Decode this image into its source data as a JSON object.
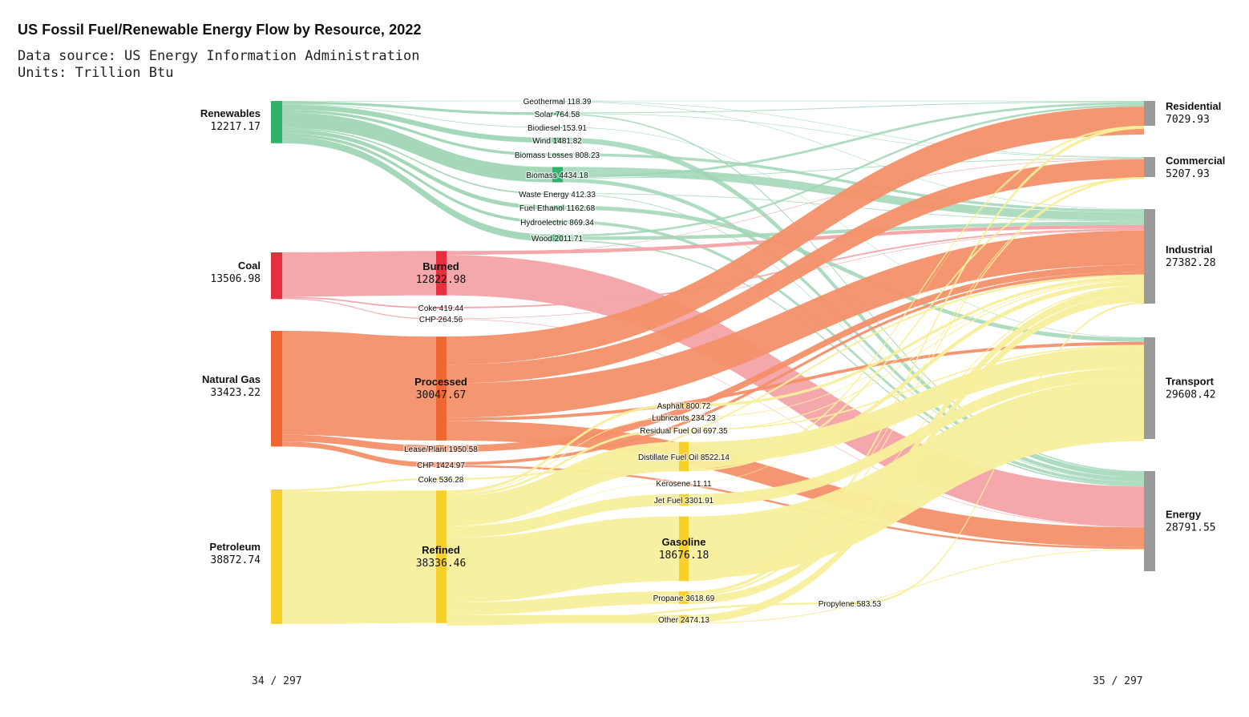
{
  "title": "US Fossil Fuel/Renewable Energy Flow by Resource, 2022",
  "subtitle_source": "Data source: US Energy Information Administration",
  "subtitle_units": "Units: Trillion Btu",
  "page_left": "34 / 297",
  "page_right": "35 / 297",
  "colors": {
    "renewables": "#2fb36a",
    "renewables_link": "#9fd6b5",
    "coal": "#e5303f",
    "coal_link": "#f4a3a8",
    "gas": "#ee6733",
    "gas_link": "#f39069",
    "petroleum": "#f7d12a",
    "petroleum_link": "#f8ef9c",
    "sector": "#9a9a9a"
  },
  "chart_data": {
    "type": "sankey",
    "units": "Trillion Btu",
    "sources": [
      {
        "name": "Renewables",
        "value": 12217.17
      },
      {
        "name": "Coal",
        "value": 13506.98
      },
      {
        "name": "Natural Gas",
        "value": 33423.22
      },
      {
        "name": "Petroleum",
        "value": 38872.74
      }
    ],
    "intermediate": [
      {
        "name": "Geothermal",
        "value": 118.39,
        "from": "Renewables"
      },
      {
        "name": "Solar",
        "value": 764.58,
        "from": "Renewables"
      },
      {
        "name": "Biodiesel",
        "value": 153.91,
        "from": "Renewables"
      },
      {
        "name": "Wind",
        "value": 1481.82,
        "from": "Renewables"
      },
      {
        "name": "Biomass Losses",
        "value": 808.23,
        "from": "Renewables"
      },
      {
        "name": "Biomass",
        "value": 4434.18,
        "from": "Renewables"
      },
      {
        "name": "Waste Energy",
        "value": 412.33,
        "from": "Renewables"
      },
      {
        "name": "Fuel Ethanol",
        "value": 1162.68,
        "from": "Renewables"
      },
      {
        "name": "Hydroelectric",
        "value": 869.34,
        "from": "Renewables"
      },
      {
        "name": "Wood",
        "value": 2011.71,
        "from": "Renewables"
      },
      {
        "name": "Burned",
        "value": 12822.98,
        "from": "Coal"
      },
      {
        "name": "Coke",
        "value": 419.44,
        "from": "Coal"
      },
      {
        "name": "CHP",
        "value": 264.56,
        "from": "Coal"
      },
      {
        "name": "Processed",
        "value": 30047.67,
        "from": "Natural Gas"
      },
      {
        "name": "Lease/Plant",
        "value": 1950.58,
        "from": "Natural Gas"
      },
      {
        "name": "CHP",
        "value": 1424.97,
        "from": "Natural Gas"
      },
      {
        "name": "Coke",
        "value": 536.28,
        "from": "Petroleum"
      },
      {
        "name": "Refined",
        "value": 38336.46,
        "from": "Petroleum"
      }
    ],
    "products": [
      {
        "name": "Asphalt",
        "value": 800.72
      },
      {
        "name": "Lubricants",
        "value": 234.23
      },
      {
        "name": "Residual Fuel Oil",
        "value": 697.35
      },
      {
        "name": "Distillate Fuel Oil",
        "value": 8522.14
      },
      {
        "name": "Kerosene",
        "value": 11.11
      },
      {
        "name": "Jet Fuel",
        "value": 3301.91
      },
      {
        "name": "Gasoline",
        "value": 18676.18
      },
      {
        "name": "Propane",
        "value": 3618.69
      },
      {
        "name": "Other",
        "value": 2474.13
      },
      {
        "name": "Propylene",
        "value": 583.53
      }
    ],
    "sectors": [
      {
        "name": "Residential",
        "value": 7029.93
      },
      {
        "name": "Commercial",
        "value": 5207.93
      },
      {
        "name": "Industrial",
        "value": 27382.28
      },
      {
        "name": "Transport",
        "value": 29608.42
      },
      {
        "name": "Energy",
        "value": 28791.55
      }
    ]
  }
}
